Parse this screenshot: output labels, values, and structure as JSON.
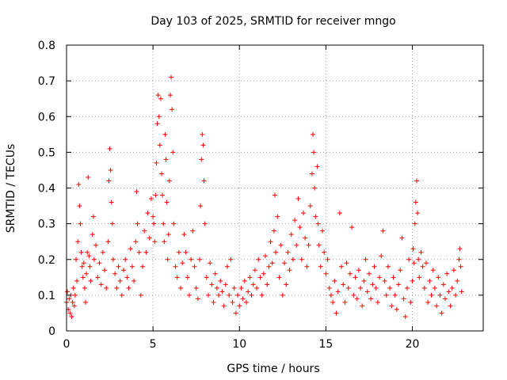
{
  "chart_data": {
    "type": "scatter",
    "title": "Day 103 of 2025, SRMTID for receiver mngo",
    "xlabel": "GPS time / hours",
    "ylabel": "SRMTID / TECUs",
    "xlim": [
      0,
      24.1
    ],
    "ylim": [
      0,
      0.8
    ],
    "xticks": [
      0,
      5,
      10,
      15,
      20
    ],
    "yticks": [
      0,
      0.1,
      0.2,
      0.3,
      0.4,
      0.5,
      0.6,
      0.7,
      0.8
    ],
    "xtick_labels": [
      "0",
      "5",
      "10",
      "15",
      "20"
    ],
    "ytick_labels": [
      "0",
      "0.1",
      "0.2",
      "0.3",
      "0.4",
      "0.5",
      "0.6",
      "0.7",
      "0.8"
    ],
    "grid": true,
    "marker": "+",
    "color": "#ff0000",
    "series": [
      {
        "name": "SRMTID",
        "points": [
          [
            0.0,
            0.08
          ],
          [
            0.05,
            0.11
          ],
          [
            0.1,
            0.06
          ],
          [
            0.15,
            0.09
          ],
          [
            0.2,
            0.05
          ],
          [
            0.25,
            0.1
          ],
          [
            0.3,
            0.04
          ],
          [
            0.35,
            0.08
          ],
          [
            0.4,
            0.12
          ],
          [
            0.45,
            0.07
          ],
          [
            0.5,
            0.1
          ],
          [
            0.55,
            0.2
          ],
          [
            0.6,
            0.14
          ],
          [
            0.65,
            0.25
          ],
          [
            0.7,
            0.41
          ],
          [
            0.75,
            0.35
          ],
          [
            0.8,
            0.3
          ],
          [
            0.85,
            0.22
          ],
          [
            0.9,
            0.18
          ],
          [
            0.95,
            0.15
          ],
          [
            1.0,
            0.19
          ],
          [
            1.05,
            0.12
          ],
          [
            1.1,
            0.08
          ],
          [
            1.15,
            0.16
          ],
          [
            1.2,
            0.22
          ],
          [
            1.25,
            0.43
          ],
          [
            1.3,
            0.21
          ],
          [
            1.35,
            0.18
          ],
          [
            1.4,
            0.14
          ],
          [
            1.5,
            0.27
          ],
          [
            1.55,
            0.32
          ],
          [
            1.6,
            0.2
          ],
          [
            1.7,
            0.24
          ],
          [
            1.8,
            0.15
          ],
          [
            1.9,
            0.19
          ],
          [
            2.0,
            0.13
          ],
          [
            2.1,
            0.22
          ],
          [
            2.2,
            0.17
          ],
          [
            2.3,
            0.12
          ],
          [
            2.4,
            0.25
          ],
          [
            2.45,
            0.42
          ],
          [
            2.5,
            0.51
          ],
          [
            2.55,
            0.45
          ],
          [
            2.6,
            0.36
          ],
          [
            2.65,
            0.3
          ],
          [
            2.7,
            0.2
          ],
          [
            2.8,
            0.16
          ],
          [
            2.9,
            0.12
          ],
          [
            3.0,
            0.18
          ],
          [
            3.1,
            0.14
          ],
          [
            3.2,
            0.1
          ],
          [
            3.3,
            0.17
          ],
          [
            3.4,
            0.2
          ],
          [
            3.5,
            0.15
          ],
          [
            3.6,
            0.12
          ],
          [
            3.7,
            0.23
          ],
          [
            3.8,
            0.18
          ],
          [
            3.9,
            0.14
          ],
          [
            4.0,
            0.25
          ],
          [
            4.05,
            0.39
          ],
          [
            4.1,
            0.3
          ],
          [
            4.2,
            0.22
          ],
          [
            4.3,
            0.1
          ],
          [
            4.4,
            0.18
          ],
          [
            4.5,
            0.28
          ],
          [
            4.6,
            0.22
          ],
          [
            4.7,
            0.33
          ],
          [
            4.8,
            0.26
          ],
          [
            4.9,
            0.37
          ],
          [
            5.0,
            0.32
          ],
          [
            5.05,
            0.3
          ],
          [
            5.1,
            0.25
          ],
          [
            5.15,
            0.38
          ],
          [
            5.2,
            0.47
          ],
          [
            5.25,
            0.58
          ],
          [
            5.3,
            0.66
          ],
          [
            5.35,
            0.6
          ],
          [
            5.4,
            0.52
          ],
          [
            5.45,
            0.65
          ],
          [
            5.5,
            0.44
          ],
          [
            5.55,
            0.38
          ],
          [
            5.6,
            0.3
          ],
          [
            5.65,
            0.25
          ],
          [
            5.7,
            0.55
          ],
          [
            5.75,
            0.48
          ],
          [
            5.8,
            0.36
          ],
          [
            5.85,
            0.2
          ],
          [
            5.9,
            0.27
          ],
          [
            5.95,
            0.42
          ],
          [
            6.0,
            0.66
          ],
          [
            6.05,
            0.71
          ],
          [
            6.1,
            0.62
          ],
          [
            6.15,
            0.5
          ],
          [
            6.2,
            0.3
          ],
          [
            6.3,
            0.18
          ],
          [
            6.4,
            0.15
          ],
          [
            6.5,
            0.22
          ],
          [
            6.6,
            0.12
          ],
          [
            6.7,
            0.19
          ],
          [
            6.8,
            0.27
          ],
          [
            6.9,
            0.22
          ],
          [
            7.0,
            0.15
          ],
          [
            7.1,
            0.1
          ],
          [
            7.2,
            0.2
          ],
          [
            7.3,
            0.28
          ],
          [
            7.4,
            0.18
          ],
          [
            7.5,
            0.12
          ],
          [
            7.6,
            0.09
          ],
          [
            7.7,
            0.2
          ],
          [
            7.75,
            0.35
          ],
          [
            7.8,
            0.48
          ],
          [
            7.85,
            0.55
          ],
          [
            7.9,
            0.52
          ],
          [
            7.95,
            0.42
          ],
          [
            8.0,
            0.3
          ],
          [
            8.1,
            0.15
          ],
          [
            8.2,
            0.1
          ],
          [
            8.3,
            0.19
          ],
          [
            8.4,
            0.13
          ],
          [
            8.5,
            0.08
          ],
          [
            8.6,
            0.16
          ],
          [
            8.7,
            0.12
          ],
          [
            8.8,
            0.1
          ],
          [
            8.9,
            0.14
          ],
          [
            9.0,
            0.11
          ],
          [
            9.1,
            0.07
          ],
          [
            9.2,
            0.13
          ],
          [
            9.3,
            0.18
          ],
          [
            9.4,
            0.1
          ],
          [
            9.5,
            0.2
          ],
          [
            9.6,
            0.08
          ],
          [
            9.7,
            0.12
          ],
          [
            9.8,
            0.05
          ],
          [
            9.9,
            0.1
          ],
          [
            10.0,
            0.07
          ],
          [
            10.1,
            0.12
          ],
          [
            10.2,
            0.09
          ],
          [
            10.3,
            0.14
          ],
          [
            10.4,
            0.08
          ],
          [
            10.5,
            0.11
          ],
          [
            10.6,
            0.15
          ],
          [
            10.7,
            0.1
          ],
          [
            10.8,
            0.13
          ],
          [
            10.9,
            0.17
          ],
          [
            11.0,
            0.12
          ],
          [
            11.1,
            0.2
          ],
          [
            11.2,
            0.15
          ],
          [
            11.3,
            0.1
          ],
          [
            11.4,
            0.16
          ],
          [
            11.5,
            0.21
          ],
          [
            11.6,
            0.13
          ],
          [
            11.7,
            0.18
          ],
          [
            11.8,
            0.25
          ],
          [
            11.9,
            0.19
          ],
          [
            12.0,
            0.28
          ],
          [
            12.05,
            0.38
          ],
          [
            12.1,
            0.22
          ],
          [
            12.2,
            0.32
          ],
          [
            12.3,
            0.15
          ],
          [
            12.4,
            0.24
          ],
          [
            12.5,
            0.1
          ],
          [
            12.6,
            0.19
          ],
          [
            12.7,
            0.13
          ],
          [
            12.8,
            0.22
          ],
          [
            12.9,
            0.17
          ],
          [
            13.0,
            0.27
          ],
          [
            13.1,
            0.2
          ],
          [
            13.2,
            0.31
          ],
          [
            13.3,
            0.24
          ],
          [
            13.4,
            0.37
          ],
          [
            13.5,
            0.29
          ],
          [
            13.6,
            0.2
          ],
          [
            13.7,
            0.33
          ],
          [
            13.8,
            0.26
          ],
          [
            13.9,
            0.18
          ],
          [
            14.0,
            0.24
          ],
          [
            14.1,
            0.35
          ],
          [
            14.2,
            0.44
          ],
          [
            14.25,
            0.55
          ],
          [
            14.3,
            0.5
          ],
          [
            14.35,
            0.4
          ],
          [
            14.4,
            0.32
          ],
          [
            14.5,
            0.46
          ],
          [
            14.55,
            0.3
          ],
          [
            14.6,
            0.24
          ],
          [
            14.7,
            0.18
          ],
          [
            14.8,
            0.28
          ],
          [
            14.9,
            0.22
          ],
          [
            15.0,
            0.16
          ],
          [
            15.1,
            0.2
          ],
          [
            15.2,
            0.12
          ],
          [
            15.3,
            0.1
          ],
          [
            15.4,
            0.08
          ],
          [
            15.5,
            0.14
          ],
          [
            15.6,
            0.05
          ],
          [
            15.7,
            0.11
          ],
          [
            15.8,
            0.33
          ],
          [
            15.9,
            0.18
          ],
          [
            16.0,
            0.13
          ],
          [
            16.1,
            0.08
          ],
          [
            16.2,
            0.19
          ],
          [
            16.3,
            0.12
          ],
          [
            16.4,
            0.16
          ],
          [
            16.5,
            0.29
          ],
          [
            16.6,
            0.1
          ],
          [
            16.7,
            0.15
          ],
          [
            16.8,
            0.09
          ],
          [
            16.9,
            0.17
          ],
          [
            17.0,
            0.12
          ],
          [
            17.1,
            0.07
          ],
          [
            17.2,
            0.14
          ],
          [
            17.3,
            0.2
          ],
          [
            17.4,
            0.11
          ],
          [
            17.5,
            0.16
          ],
          [
            17.6,
            0.09
          ],
          [
            17.7,
            0.13
          ],
          [
            17.8,
            0.18
          ],
          [
            17.9,
            0.12
          ],
          [
            18.0,
            0.08
          ],
          [
            18.1,
            0.15
          ],
          [
            18.2,
            0.21
          ],
          [
            18.3,
            0.28
          ],
          [
            18.4,
            0.14
          ],
          [
            18.5,
            0.1
          ],
          [
            18.6,
            0.18
          ],
          [
            18.7,
            0.12
          ],
          [
            18.8,
            0.07
          ],
          [
            18.9,
            0.15
          ],
          [
            19.0,
            0.1
          ],
          [
            19.1,
            0.06
          ],
          [
            19.2,
            0.13
          ],
          [
            19.3,
            0.17
          ],
          [
            19.4,
            0.26
          ],
          [
            19.5,
            0.09
          ],
          [
            19.6,
            0.04
          ],
          [
            19.7,
            0.12
          ],
          [
            19.8,
            0.2
          ],
          [
            19.9,
            0.08
          ],
          [
            20.0,
            0.14
          ],
          [
            20.05,
            0.23
          ],
          [
            20.1,
            0.19
          ],
          [
            20.15,
            0.3
          ],
          [
            20.2,
            0.36
          ],
          [
            20.25,
            0.42
          ],
          [
            20.3,
            0.33
          ],
          [
            20.35,
            0.2
          ],
          [
            20.4,
            0.15
          ],
          [
            20.5,
            0.22
          ],
          [
            20.6,
            0.18
          ],
          [
            20.7,
            0.12
          ],
          [
            20.8,
            0.19
          ],
          [
            20.9,
            0.08
          ],
          [
            21.0,
            0.14
          ],
          [
            21.1,
            0.1
          ],
          [
            21.2,
            0.17
          ],
          [
            21.3,
            0.12
          ],
          [
            21.4,
            0.07
          ],
          [
            21.5,
            0.15
          ],
          [
            21.6,
            0.1
          ],
          [
            21.7,
            0.05
          ],
          [
            21.8,
            0.13
          ],
          [
            21.9,
            0.09
          ],
          [
            22.0,
            0.16
          ],
          [
            22.1,
            0.11
          ],
          [
            22.2,
            0.07
          ],
          [
            22.3,
            0.12
          ],
          [
            22.4,
            0.17
          ],
          [
            22.5,
            0.1
          ],
          [
            22.6,
            0.14
          ],
          [
            22.7,
            0.2
          ],
          [
            22.75,
            0.23
          ],
          [
            22.8,
            0.18
          ],
          [
            22.85,
            0.11
          ]
        ]
      }
    ]
  }
}
